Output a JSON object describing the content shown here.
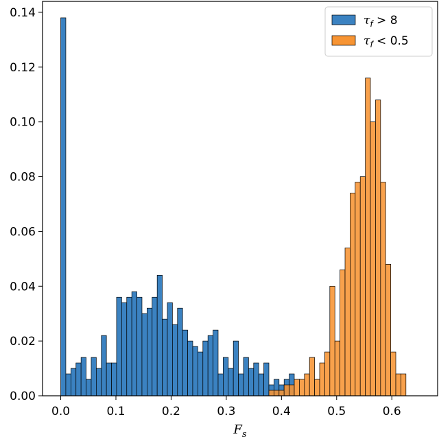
{
  "chart_data": {
    "type": "bar",
    "xlabel": "F_s",
    "ylabel": "",
    "xlim": [
      -0.033,
      0.683
    ],
    "ylim": [
      0,
      0.144
    ],
    "x_ticks": [
      0.0,
      0.1,
      0.2,
      0.3,
      0.4,
      0.5,
      0.6
    ],
    "x_tick_labels": [
      "0.0",
      "0.1",
      "0.2",
      "0.3",
      "0.4",
      "0.5",
      "0.6"
    ],
    "y_ticks": [
      0.0,
      0.02,
      0.04,
      0.06,
      0.08,
      0.1,
      0.12,
      0.14
    ],
    "y_tick_labels": [
      "0.00",
      "0.02",
      "0.04",
      "0.06",
      "0.08",
      "0.10",
      "0.12",
      "0.14"
    ],
    "legend_position": "top-right",
    "grid": false,
    "series": [
      {
        "name": "τ_f > 8",
        "legend_label": {
          "symbol": "τ",
          "sub": "f",
          "rest": " > 8"
        },
        "color": "#3b82c1",
        "x_start": 0.0,
        "bin_width": 0.0092,
        "values": [
          0.138,
          0.008,
          0.01,
          0.012,
          0.014,
          0.006,
          0.014,
          0.01,
          0.022,
          0.012,
          0.012,
          0.036,
          0.034,
          0.036,
          0.038,
          0.036,
          0.03,
          0.032,
          0.036,
          0.044,
          0.028,
          0.034,
          0.026,
          0.032,
          0.024,
          0.02,
          0.018,
          0.016,
          0.02,
          0.022,
          0.024,
          0.008,
          0.014,
          0.01,
          0.02,
          0.008,
          0.014,
          0.01,
          0.012,
          0.008,
          0.012,
          0.004,
          0.006,
          0.004,
          0.006,
          0.008
        ]
      },
      {
        "name": "τ_f < 0.5",
        "legend_label": {
          "symbol": "τ",
          "sub": "f",
          "rest": " < 0.5"
        },
        "color": "#f79433",
        "x_start": 0.3772,
        "bin_width": 0.0092,
        "values": [
          0.002,
          0.002,
          0.002,
          0.004,
          0.004,
          0.006,
          0.006,
          0.008,
          0.014,
          0.006,
          0.012,
          0.016,
          0.04,
          0.02,
          0.046,
          0.054,
          0.074,
          0.078,
          0.08,
          0.116,
          0.1,
          0.108,
          0.078,
          0.048,
          0.016,
          0.008,
          0.008
        ]
      }
    ]
  }
}
